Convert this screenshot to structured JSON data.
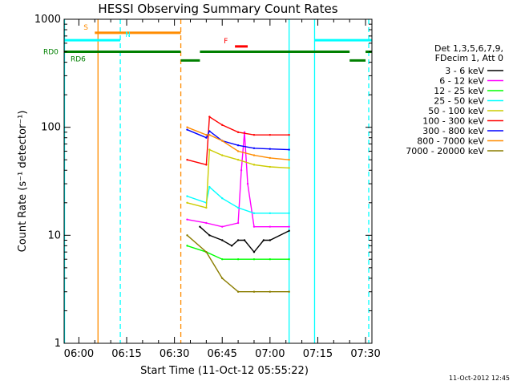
{
  "chart_data": {
    "type": "line",
    "title": "HESSI Observing Summary Count Rates",
    "xlabel": "Start Time (11-Oct-12 05:55:22)",
    "ylabel": "Count Rate (s⁻¹ detector⁻¹)",
    "yscale": "log",
    "ylim": [
      1,
      1000
    ],
    "xlim": [
      "05:55:22",
      "07:32:00"
    ],
    "x_ticks": [
      "06:00",
      "06:15",
      "06:30",
      "06:45",
      "07:00",
      "07:15",
      "07:30"
    ],
    "y_ticks": [
      "1",
      "10",
      "100",
      "1000"
    ],
    "grid": false,
    "legend_placement": "right",
    "legend_header": [
      "Det 1,3,5,6,7,9,",
      "FDecim 1, Att 0"
    ],
    "series": [
      {
        "name": "3 - 6 keV",
        "color": "#000000",
        "x": [
          "06:38",
          "06:41",
          "06:45",
          "06:48",
          "06:50",
          "06:52",
          "06:55",
          "06:58",
          "07:00",
          "07:06"
        ],
        "values": [
          12,
          10,
          9,
          8,
          9,
          9,
          7,
          9,
          9,
          11
        ]
      },
      {
        "name": "6 - 12 keV",
        "color": "#ff00ff",
        "x": [
          "06:34",
          "06:40",
          "06:45",
          "06:50",
          "06:51",
          "06:52",
          "06:53",
          "06:55",
          "07:00",
          "07:06"
        ],
        "values": [
          14,
          13,
          12,
          13,
          40,
          90,
          30,
          12,
          12,
          12
        ]
      },
      {
        "name": "12 - 25 keV",
        "color": "#00ff00",
        "x": [
          "06:34",
          "06:40",
          "06:45",
          "06:50",
          "06:55",
          "07:00",
          "07:06"
        ],
        "values": [
          8,
          7,
          6,
          6,
          6,
          6,
          6
        ]
      },
      {
        "name": "25 - 50 keV",
        "color": "#00ffff",
        "x": [
          "06:34",
          "06:40",
          "06:41",
          "06:45",
          "06:50",
          "06:55",
          "07:00",
          "07:06"
        ],
        "values": [
          23,
          20,
          28,
          22,
          18,
          16,
          16,
          16
        ]
      },
      {
        "name": "50 - 100 keV",
        "color": "#cccc00",
        "x": [
          "06:34",
          "06:40",
          "06:41",
          "06:45",
          "06:50",
          "06:55",
          "07:00",
          "07:06"
        ],
        "values": [
          20,
          18,
          62,
          55,
          50,
          45,
          43,
          42
        ]
      },
      {
        "name": "100 - 300 keV",
        "color": "#ff0000",
        "x": [
          "06:34",
          "06:40",
          "06:41",
          "06:45",
          "06:50",
          "06:55",
          "07:00",
          "07:06"
        ],
        "values": [
          50,
          45,
          125,
          105,
          90,
          85,
          85,
          85
        ]
      },
      {
        "name": "300 - 800 keV",
        "color": "#0000ff",
        "x": [
          "06:34",
          "06:40",
          "06:41",
          "06:45",
          "06:50",
          "06:55",
          "07:00",
          "07:06"
        ],
        "values": [
          95,
          80,
          92,
          75,
          68,
          64,
          63,
          62
        ]
      },
      {
        "name": "800 - 7000 keV",
        "color": "#ff8c00",
        "x": [
          "06:34",
          "06:40",
          "06:41",
          "06:45",
          "06:50",
          "06:55",
          "07:00",
          "07:06"
        ],
        "values": [
          100,
          85,
          85,
          75,
          60,
          55,
          52,
          50
        ]
      },
      {
        "name": "7000 - 20000 keV",
        "color": "#8b7d00",
        "x": [
          "06:34",
          "06:40",
          "06:45",
          "06:50",
          "06:55",
          "07:00",
          "07:06"
        ],
        "values": [
          10,
          7,
          4,
          3,
          3,
          3,
          3
        ]
      }
    ],
    "state_bars": [
      {
        "label": "S",
        "color": "#ff8c00",
        "value": 750,
        "segments": [
          [
            "06:05",
            "06:32"
          ]
        ]
      },
      {
        "label": "N",
        "color": "#00ffff",
        "value": 640,
        "segments": [
          [
            "05:55:22",
            "06:13"
          ],
          [
            "07:14",
            "07:32"
          ]
        ]
      },
      {
        "label": "F",
        "color": "#ff0000",
        "value": 560,
        "segments": [
          [
            "06:49",
            "06:53"
          ]
        ]
      },
      {
        "label": "RD0",
        "color": "#008000",
        "value": 500,
        "segments": [
          [
            "05:55:22",
            "06:32"
          ],
          [
            "06:38",
            "07:25"
          ],
          [
            "07:30",
            "07:32"
          ]
        ]
      },
      {
        "label": "RD6",
        "color": "#008000",
        "value": 415,
        "segments": [
          [
            "06:32",
            "06:38"
          ],
          [
            "07:25",
            "07:30"
          ]
        ]
      }
    ],
    "vertical_lines": [
      {
        "x": "05:55:30",
        "color": "#00ffff",
        "style": "solid"
      },
      {
        "x": "06:06",
        "color": "#ff8c00",
        "style": "solid"
      },
      {
        "x": "06:13",
        "color": "#00ffff",
        "style": "dashed"
      },
      {
        "x": "06:32",
        "color": "#ff8c00",
        "style": "dashed"
      },
      {
        "x": "07:06",
        "color": "#00ffff",
        "style": "solid"
      },
      {
        "x": "07:14",
        "color": "#00ffff",
        "style": "solid"
      },
      {
        "x": "07:31",
        "color": "#00ffff",
        "style": "dashed"
      }
    ]
  },
  "footer_timestamp": "11-Oct-2012 12:45"
}
